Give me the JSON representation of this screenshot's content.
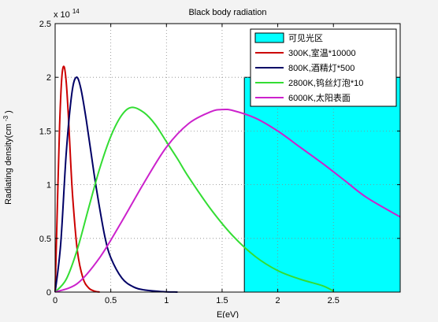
{
  "chart_data": {
    "type": "line",
    "title": "Black body radiation",
    "xlabel": "E(eV)",
    "ylabel": "Radiating density(cm^-3)",
    "ylabel_text": "Radiating density(cm",
    "ylabel_sup": "-3",
    "ylabel_close": ")",
    "exponent_prefix": "x 10",
    "exponent_power": "14",
    "xlim": [
      0,
      3.1
    ],
    "ylim": [
      0,
      2.5
    ],
    "x_ticks": [
      0,
      0.5,
      1,
      1.5,
      2,
      2.5
    ],
    "x_tick_labels": [
      "0",
      "0.5",
      "1",
      "1.5",
      "2",
      "2.5"
    ],
    "y_ticks": [
      0,
      0.5,
      1,
      1.5,
      2,
      2.5
    ],
    "y_tick_labels": [
      "0",
      "0.5",
      "1",
      "1.5",
      "2",
      "2.5"
    ],
    "grid": true,
    "legend_position": "top-right",
    "visible_region": {
      "name": "可见光区",
      "x_start": 1.7,
      "x_end": 3.1,
      "y_top": 2.0,
      "color": "#00ffff"
    },
    "series": [
      {
        "name": "300K,室温*10000",
        "color": "#cc0000",
        "x": [
          0,
          0.02,
          0.04,
          0.06,
          0.08,
          0.1,
          0.12,
          0.14,
          0.16,
          0.2,
          0.25,
          0.3,
          0.35,
          0.4
        ],
        "y": [
          0,
          0.8,
          1.55,
          2.0,
          2.1,
          1.95,
          1.62,
          1.2,
          0.85,
          0.38,
          0.13,
          0.04,
          0.01,
          0
        ]
      },
      {
        "name": "800K,酒精灯*500",
        "color": "#000066",
        "x": [
          0,
          0.05,
          0.1,
          0.15,
          0.19,
          0.23,
          0.28,
          0.35,
          0.4,
          0.45,
          0.5,
          0.6,
          0.7,
          0.8,
          0.95,
          1.1
        ],
        "y": [
          0,
          0.45,
          1.3,
          1.85,
          2.0,
          1.9,
          1.6,
          1.1,
          0.78,
          0.5,
          0.32,
          0.13,
          0.05,
          0.02,
          0.005,
          0
        ]
      },
      {
        "name": "2800K,钨丝灯泡*10",
        "color": "#33dd33",
        "x": [
          0,
          0.1,
          0.2,
          0.3,
          0.4,
          0.5,
          0.6,
          0.69,
          0.8,
          0.9,
          1.0,
          1.1,
          1.2,
          1.4,
          1.6,
          1.8,
          2.0,
          2.2,
          2.4,
          2.5
        ],
        "y": [
          0,
          0.12,
          0.4,
          0.78,
          1.15,
          1.45,
          1.65,
          1.72,
          1.67,
          1.56,
          1.4,
          1.24,
          1.07,
          0.77,
          0.52,
          0.33,
          0.2,
          0.12,
          0.06,
          0.01
        ]
      },
      {
        "name": "6000K,太阳表面",
        "color": "#cc22cc",
        "x": [
          0,
          0.2,
          0.4,
          0.6,
          0.8,
          1.0,
          1.2,
          1.4,
          1.5,
          1.6,
          1.8,
          2.0,
          2.2,
          2.4,
          2.6,
          2.8,
          3.1
        ],
        "y": [
          0,
          0.08,
          0.32,
          0.66,
          1.02,
          1.35,
          1.57,
          1.68,
          1.7,
          1.69,
          1.62,
          1.5,
          1.35,
          1.2,
          1.04,
          0.88,
          0.7
        ]
      }
    ]
  }
}
